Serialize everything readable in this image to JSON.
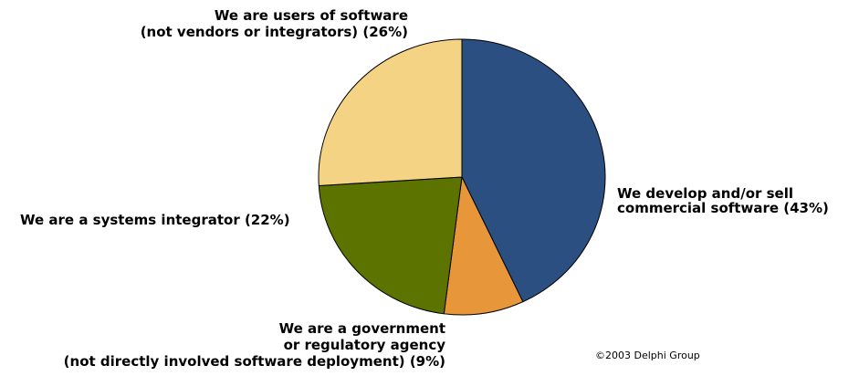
{
  "chart_data": {
    "type": "pie",
    "title": "",
    "slices": [
      {
        "label": "We develop and/or sell commercial software (43%)",
        "label_lines": [
          "We develop and/or sell",
          "commercial software (43%)"
        ],
        "value": 43,
        "color": "#2b4f80"
      },
      {
        "label": "We are a government or regulatory agency (not directly involved software deployment) (9%)",
        "label_lines": [
          "We are a government",
          "or regulatory agency",
          "(not directly involved software deployment) (9%)"
        ],
        "value": 9,
        "color": "#e8963a"
      },
      {
        "label": "We are a systems integrator (22%)",
        "label_lines": [
          "We are a systems integrator (22%)"
        ],
        "value": 22,
        "color": "#5c7300"
      },
      {
        "label": "We are users of software (not vendors or integrators) (26%)",
        "label_lines": [
          "We are users of software",
          "(not vendors or integrators) (26%)"
        ],
        "value": 26,
        "color": "#f5d385"
      }
    ],
    "legend": "none",
    "slice_border_color": "#000000"
  },
  "footer": {
    "copyright": "©2003  Delphi Group"
  }
}
